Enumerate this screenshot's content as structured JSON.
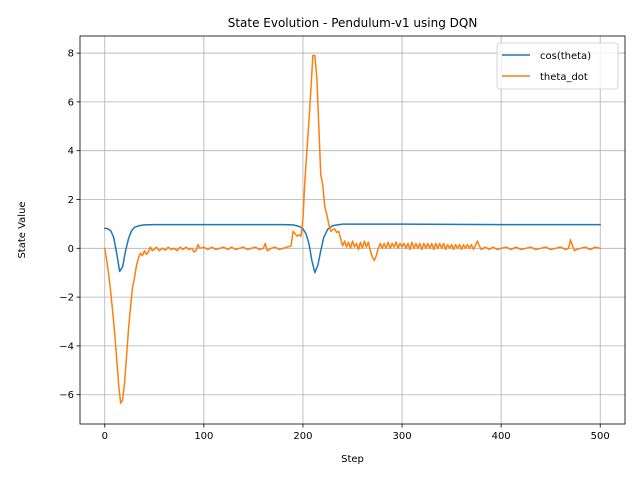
{
  "chart_data": {
    "type": "line",
    "title": "State Evolution - Pendulum-v1 using DQN",
    "xlabel": "Step",
    "ylabel": "State Value",
    "xlim": [
      -25,
      525
    ],
    "ylim": [
      -7.2,
      8.7
    ],
    "xticks": [
      0,
      100,
      200,
      300,
      400,
      500
    ],
    "yticks": [
      -6,
      -4,
      -2,
      0,
      2,
      4,
      6,
      8
    ],
    "grid": true,
    "legend_position": "top-right",
    "series": [
      {
        "name": "cos(theta)",
        "color": "#1f77b4",
        "points": [
          [
            0,
            0.82
          ],
          [
            3,
            0.8
          ],
          [
            6,
            0.72
          ],
          [
            9,
            0.45
          ],
          [
            12,
            -0.2
          ],
          [
            15,
            -0.95
          ],
          [
            18,
            -0.75
          ],
          [
            21,
            -0.1
          ],
          [
            24,
            0.4
          ],
          [
            27,
            0.72
          ],
          [
            30,
            0.86
          ],
          [
            35,
            0.93
          ],
          [
            40,
            0.96
          ],
          [
            50,
            0.97
          ],
          [
            100,
            0.97
          ],
          [
            150,
            0.97
          ],
          [
            180,
            0.97
          ],
          [
            190,
            0.96
          ],
          [
            196,
            0.9
          ],
          [
            200,
            0.8
          ],
          [
            203,
            0.6
          ],
          [
            206,
            0.2
          ],
          [
            209,
            -0.5
          ],
          [
            212,
            -1.0
          ],
          [
            215,
            -0.7
          ],
          [
            218,
            -0.1
          ],
          [
            221,
            0.45
          ],
          [
            225,
            0.78
          ],
          [
            230,
            0.93
          ],
          [
            240,
            0.99
          ],
          [
            300,
            0.99
          ],
          [
            350,
            0.98
          ],
          [
            400,
            0.97
          ],
          [
            450,
            0.97
          ],
          [
            500,
            0.97
          ]
        ]
      },
      {
        "name": "theta_dot",
        "color": "#ff7f0e",
        "points": [
          [
            0,
            0
          ],
          [
            2,
            -0.5
          ],
          [
            4,
            -1.1
          ],
          [
            6,
            -1.8
          ],
          [
            8,
            -2.6
          ],
          [
            10,
            -3.5
          ],
          [
            12,
            -4.5
          ],
          [
            14,
            -5.6
          ],
          [
            16,
            -6.35
          ],
          [
            18,
            -6.2
          ],
          [
            20,
            -5.5
          ],
          [
            22,
            -4.4
          ],
          [
            24,
            -3.3
          ],
          [
            26,
            -2.4
          ],
          [
            28,
            -1.6
          ],
          [
            30,
            -1.2
          ],
          [
            32,
            -0.7
          ],
          [
            34,
            -0.4
          ],
          [
            36,
            -0.2
          ],
          [
            38,
            -0.3
          ],
          [
            40,
            -0.1
          ],
          [
            42,
            -0.25
          ],
          [
            44,
            -0.15
          ],
          [
            46,
            0.05
          ],
          [
            48,
            -0.1
          ],
          [
            50,
            -0.05
          ],
          [
            52,
            0.05
          ],
          [
            55,
            -0.1
          ],
          [
            58,
            0.0
          ],
          [
            61,
            -0.08
          ],
          [
            64,
            0.05
          ],
          [
            67,
            -0.05
          ],
          [
            70,
            0.0
          ],
          [
            73,
            -0.1
          ],
          [
            76,
            0.05
          ],
          [
            79,
            -0.05
          ],
          [
            82,
            0.05
          ],
          [
            85,
            -0.05
          ],
          [
            88,
            0.0
          ],
          [
            90,
            -0.15
          ],
          [
            92,
            -0.1
          ],
          [
            94,
            0.15
          ],
          [
            96,
            0.0
          ],
          [
            100,
            0.05
          ],
          [
            104,
            -0.05
          ],
          [
            108,
            0.05
          ],
          [
            112,
            -0.05
          ],
          [
            116,
            0.0
          ],
          [
            120,
            0.05
          ],
          [
            124,
            -0.05
          ],
          [
            128,
            0.05
          ],
          [
            132,
            -0.05
          ],
          [
            136,
            0.0
          ],
          [
            140,
            0.05
          ],
          [
            144,
            -0.05
          ],
          [
            148,
            0.0
          ],
          [
            152,
            0.05
          ],
          [
            156,
            -0.05
          ],
          [
            160,
            0.0
          ],
          [
            162,
            0.2
          ],
          [
            164,
            -0.1
          ],
          [
            168,
            0.0
          ],
          [
            172,
            0.05
          ],
          [
            176,
            -0.05
          ],
          [
            180,
            0.0
          ],
          [
            184,
            0.05
          ],
          [
            188,
            0.1
          ],
          [
            190,
            0.7
          ],
          [
            192,
            0.6
          ],
          [
            194,
            0.5
          ],
          [
            196,
            0.55
          ],
          [
            198,
            0.5
          ],
          [
            200,
            1.2
          ],
          [
            202,
            2.8
          ],
          [
            204,
            4.0
          ],
          [
            206,
            5.2
          ],
          [
            208,
            6.5
          ],
          [
            210,
            7.9
          ],
          [
            212,
            7.9
          ],
          [
            214,
            7.0
          ],
          [
            216,
            5.0
          ],
          [
            218,
            3.0
          ],
          [
            220,
            2.6
          ],
          [
            222,
            1.7
          ],
          [
            224,
            1.4
          ],
          [
            226,
            1.0
          ],
          [
            228,
            0.7
          ],
          [
            230,
            0.75
          ],
          [
            232,
            0.8
          ],
          [
            234,
            0.65
          ],
          [
            236,
            0.7
          ],
          [
            238,
            0.4
          ],
          [
            240,
            0.1
          ],
          [
            242,
            0.3
          ],
          [
            244,
            0.05
          ],
          [
            246,
            0.25
          ],
          [
            248,
            0.0
          ],
          [
            250,
            0.3
          ],
          [
            252,
            0.05
          ],
          [
            254,
            0.2
          ],
          [
            256,
            -0.05
          ],
          [
            258,
            0.25
          ],
          [
            260,
            0.0
          ],
          [
            262,
            0.3
          ],
          [
            264,
            0.05
          ],
          [
            266,
            0.25
          ],
          [
            268,
            -0.1
          ],
          [
            270,
            -0.35
          ],
          [
            272,
            -0.5
          ],
          [
            274,
            -0.3
          ],
          [
            276,
            0.0
          ],
          [
            278,
            0.2
          ],
          [
            280,
            0.0
          ],
          [
            282,
            0.2
          ],
          [
            284,
            0.0
          ],
          [
            286,
            0.25
          ],
          [
            288,
            0.0
          ],
          [
            290,
            0.2
          ],
          [
            292,
            0.05
          ],
          [
            294,
            0.25
          ],
          [
            296,
            0.0
          ],
          [
            298,
            0.2
          ],
          [
            300,
            0.05
          ],
          [
            302,
            0.2
          ],
          [
            304,
            0.0
          ],
          [
            306,
            0.2
          ],
          [
            308,
            -0.05
          ],
          [
            310,
            0.25
          ],
          [
            312,
            0.0
          ],
          [
            314,
            0.2
          ],
          [
            316,
            0.0
          ],
          [
            318,
            0.2
          ],
          [
            320,
            -0.05
          ],
          [
            322,
            0.2
          ],
          [
            324,
            0.0
          ],
          [
            326,
            0.2
          ],
          [
            328,
            0.0
          ],
          [
            330,
            0.2
          ],
          [
            332,
            -0.05
          ],
          [
            334,
            0.2
          ],
          [
            336,
            0.0
          ],
          [
            338,
            0.2
          ],
          [
            340,
            0.0
          ],
          [
            342,
            0.2
          ],
          [
            344,
            -0.05
          ],
          [
            346,
            0.15
          ],
          [
            348,
            0.0
          ],
          [
            350,
            0.15
          ],
          [
            352,
            -0.05
          ],
          [
            354,
            0.15
          ],
          [
            356,
            0.0
          ],
          [
            358,
            0.15
          ],
          [
            360,
            -0.05
          ],
          [
            362,
            0.15
          ],
          [
            364,
            0.0
          ],
          [
            366,
            0.15
          ],
          [
            368,
            0.0
          ],
          [
            370,
            0.15
          ],
          [
            372,
            -0.05
          ],
          [
            374,
            0.1
          ],
          [
            376,
            0.3
          ],
          [
            378,
            0.1
          ],
          [
            380,
            -0.05
          ],
          [
            384,
            0.05
          ],
          [
            388,
            -0.05
          ],
          [
            392,
            0.05
          ],
          [
            396,
            -0.05
          ],
          [
            400,
            0.0
          ],
          [
            405,
            0.05
          ],
          [
            410,
            -0.05
          ],
          [
            415,
            0.05
          ],
          [
            420,
            -0.05
          ],
          [
            425,
            0.0
          ],
          [
            430,
            0.05
          ],
          [
            435,
            -0.05
          ],
          [
            440,
            0.0
          ],
          [
            445,
            0.05
          ],
          [
            450,
            -0.05
          ],
          [
            455,
            0.0
          ],
          [
            460,
            0.05
          ],
          [
            465,
            -0.05
          ],
          [
            468,
            0.0
          ],
          [
            470,
            0.35
          ],
          [
            472,
            0.1
          ],
          [
            474,
            -0.1
          ],
          [
            476,
            -0.05
          ],
          [
            480,
            0.0
          ],
          [
            485,
            0.05
          ],
          [
            490,
            -0.05
          ],
          [
            495,
            0.05
          ],
          [
            500,
            0.0
          ]
        ]
      }
    ]
  }
}
